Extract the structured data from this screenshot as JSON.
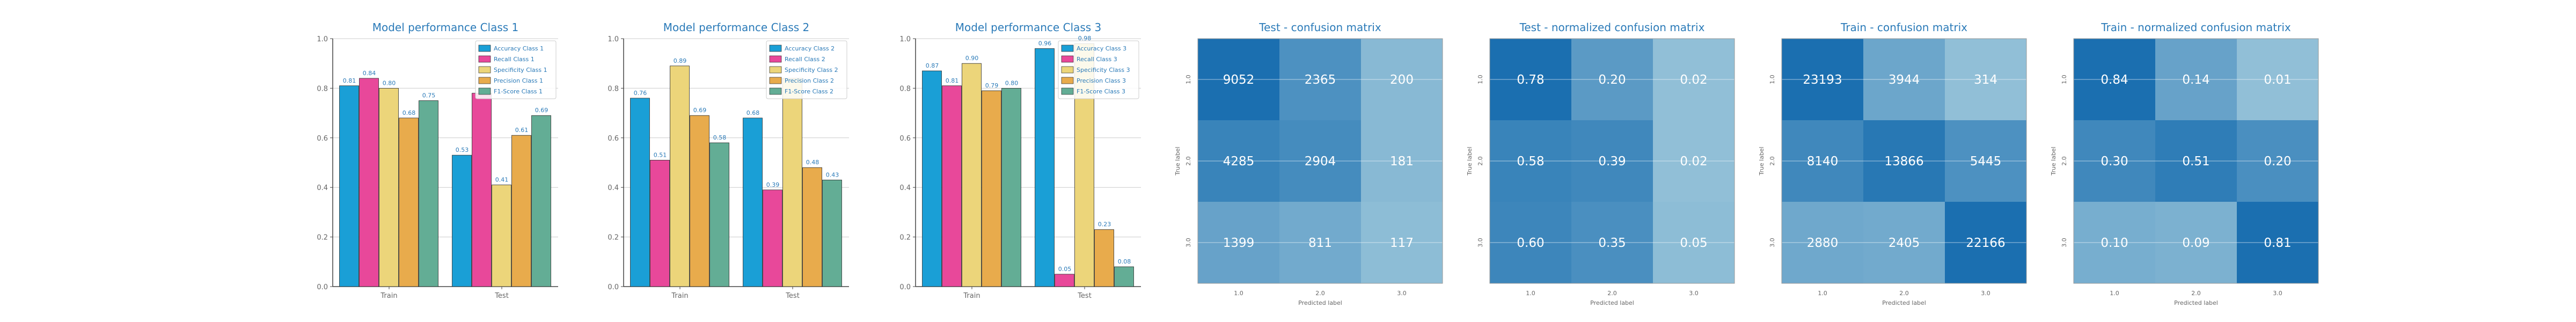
{
  "colors": {
    "accuracy": "#1a9fd6",
    "recall": "#e8489a",
    "specificity": "#ecd57a",
    "precision": "#e8ab4c",
    "f1": "#63ad95",
    "title": "#2a7ab8",
    "axis": "#444444",
    "grid": "#cccccc",
    "tick": "#666666"
  },
  "chart_data": [
    {
      "type": "bar",
      "title": "Model performance Class 1",
      "categories": [
        "Train",
        "Test"
      ],
      "ylim": [
        0,
        1.0
      ],
      "yticks": [
        "0.0",
        "0.2",
        "0.4",
        "0.6",
        "0.8",
        "1.0"
      ],
      "legend_position": "top-right",
      "grid": true,
      "series": [
        {
          "name": "Accuracy Class 1",
          "values": [
            0.81,
            0.53
          ]
        },
        {
          "name": "Recall Class 1",
          "values": [
            0.84,
            0.78
          ]
        },
        {
          "name": "Specificity Class 1",
          "values": [
            0.8,
            0.41
          ]
        },
        {
          "name": "Precision Class 1",
          "values": [
            0.68,
            0.61
          ]
        },
        {
          "name": "F1-Score Class 1",
          "values": [
            0.75,
            0.69
          ]
        }
      ],
      "labels": [
        [
          "0.81",
          "0.84",
          "0.80",
          "0.68",
          "0.75"
        ],
        [
          "0.53",
          "",
          "0.41",
          "0.61",
          "0.69"
        ]
      ]
    },
    {
      "type": "bar",
      "title": "Model performance Class 2",
      "categories": [
        "Train",
        "Test"
      ],
      "ylim": [
        0,
        1.0
      ],
      "yticks": [
        "0.0",
        "0.2",
        "0.4",
        "0.6",
        "0.8",
        "1.0"
      ],
      "legend_position": "top-right",
      "grid": true,
      "series": [
        {
          "name": "Accuracy Class 2",
          "values": [
            0.76,
            0.68
          ]
        },
        {
          "name": "Recall Class 2",
          "values": [
            0.51,
            0.39
          ]
        },
        {
          "name": "Specificity Class 2",
          "values": [
            0.89,
            0.84
          ]
        },
        {
          "name": "Precision Class 2",
          "values": [
            0.69,
            0.48
          ]
        },
        {
          "name": "F1-Score Class 2",
          "values": [
            0.58,
            0.43
          ]
        }
      ],
      "labels": [
        [
          "0.76",
          "0.51",
          "0.89",
          "0.69",
          "0.58"
        ],
        [
          "0.68",
          "0.39",
          "",
          "0.48",
          "0.43"
        ]
      ]
    },
    {
      "type": "bar",
      "title": "Model performance Class 3",
      "categories": [
        "Train",
        "Test"
      ],
      "ylim": [
        0,
        1.0
      ],
      "yticks": [
        "0.0",
        "0.2",
        "0.4",
        "0.6",
        "0.8",
        "1.0"
      ],
      "legend_position": "top-right",
      "grid": true,
      "series": [
        {
          "name": "Accuracy Class 3",
          "values": [
            0.87,
            0.96
          ]
        },
        {
          "name": "Recall Class 3",
          "values": [
            0.81,
            0.05
          ]
        },
        {
          "name": "Specificity Class 3",
          "values": [
            0.9,
            0.98
          ]
        },
        {
          "name": "Precision Class 3",
          "values": [
            0.79,
            0.23
          ]
        },
        {
          "name": "F1-Score Class 3",
          "values": [
            0.8,
            0.08
          ]
        }
      ],
      "labels": [
        [
          "0.87",
          "0.81",
          "0.90",
          "0.79",
          "0.80"
        ],
        [
          "0.96",
          "0.05",
          "0.98",
          "0.23",
          "0.08"
        ]
      ]
    },
    {
      "type": "heatmap",
      "title": "Test - confusion matrix",
      "xlabel": "Predicted label",
      "ylabel": "True label",
      "xticks": [
        "1.0",
        "2.0",
        "3.0"
      ],
      "yticks": [
        "1.0",
        "2.0",
        "3.0"
      ],
      "values": [
        [
          9052,
          2365,
          200
        ],
        [
          4285,
          2904,
          181
        ],
        [
          1399,
          811,
          117
        ]
      ],
      "shade": [
        [
          1.0,
          0.7,
          0.35
        ],
        [
          0.82,
          0.75,
          0.35
        ],
        [
          0.55,
          0.48,
          0.32
        ]
      ],
      "cells": [
        [
          "9052",
          "2365",
          "200"
        ],
        [
          "4285",
          "2904",
          "181"
        ],
        [
          "1399",
          "811",
          "117"
        ]
      ]
    },
    {
      "type": "heatmap",
      "title": "Test - normalized confusion matrix",
      "xlabel": "Predicted label",
      "ylabel": "True label",
      "xticks": [
        "1.0",
        "2.0",
        "3.0"
      ],
      "yticks": [
        "1.0",
        "2.0",
        "3.0"
      ],
      "values": [
        [
          0.78,
          0.2,
          0.02
        ],
        [
          0.58,
          0.39,
          0.02
        ],
        [
          0.6,
          0.35,
          0.05
        ]
      ],
      "shade": [
        [
          1.0,
          0.62,
          0.3
        ],
        [
          0.82,
          0.78,
          0.3
        ],
        [
          0.8,
          0.72,
          0.32
        ]
      ],
      "cells": [
        [
          "0.78",
          "0.20",
          "0.02"
        ],
        [
          "0.58",
          "0.39",
          "0.02"
        ],
        [
          "0.60",
          "0.35",
          "0.05"
        ]
      ]
    },
    {
      "type": "heatmap",
      "title": "Train - confusion matrix",
      "xlabel": "Predicted label",
      "ylabel": "True label",
      "xticks": [
        "1.0",
        "2.0",
        "3.0"
      ],
      "yticks": [
        "1.0",
        "2.0",
        "3.0"
      ],
      "values": [
        [
          23193,
          3944,
          314
        ],
        [
          8140,
          13866,
          5445
        ],
        [
          2880,
          2405,
          22166
        ]
      ],
      "shade": [
        [
          1.0,
          0.52,
          0.3
        ],
        [
          0.78,
          0.92,
          0.7
        ],
        [
          0.5,
          0.48,
          1.0
        ]
      ],
      "cells": [
        [
          "23193",
          "3944",
          "314"
        ],
        [
          "8140",
          "13866",
          "5445"
        ],
        [
          "2880",
          "2405",
          "22166"
        ]
      ]
    },
    {
      "type": "heatmap",
      "title": "Train - normalized confusion matrix",
      "xlabel": "Predicted label",
      "ylabel": "True label",
      "xticks": [
        "1.0",
        "2.0",
        "3.0"
      ],
      "yticks": [
        "1.0",
        "2.0",
        "3.0"
      ],
      "values": [
        [
          0.84,
          0.14,
          0.01
        ],
        [
          0.3,
          0.51,
          0.2
        ],
        [
          0.1,
          0.09,
          0.81
        ]
      ],
      "shade": [
        [
          1.0,
          0.55,
          0.3
        ],
        [
          0.78,
          0.88,
          0.72
        ],
        [
          0.45,
          0.42,
          1.0
        ]
      ],
      "cells": [
        [
          "0.84",
          "0.14",
          "0.01"
        ],
        [
          "0.30",
          "0.51",
          "0.20"
        ],
        [
          "0.10",
          "0.09",
          "0.81"
        ]
      ]
    }
  ]
}
